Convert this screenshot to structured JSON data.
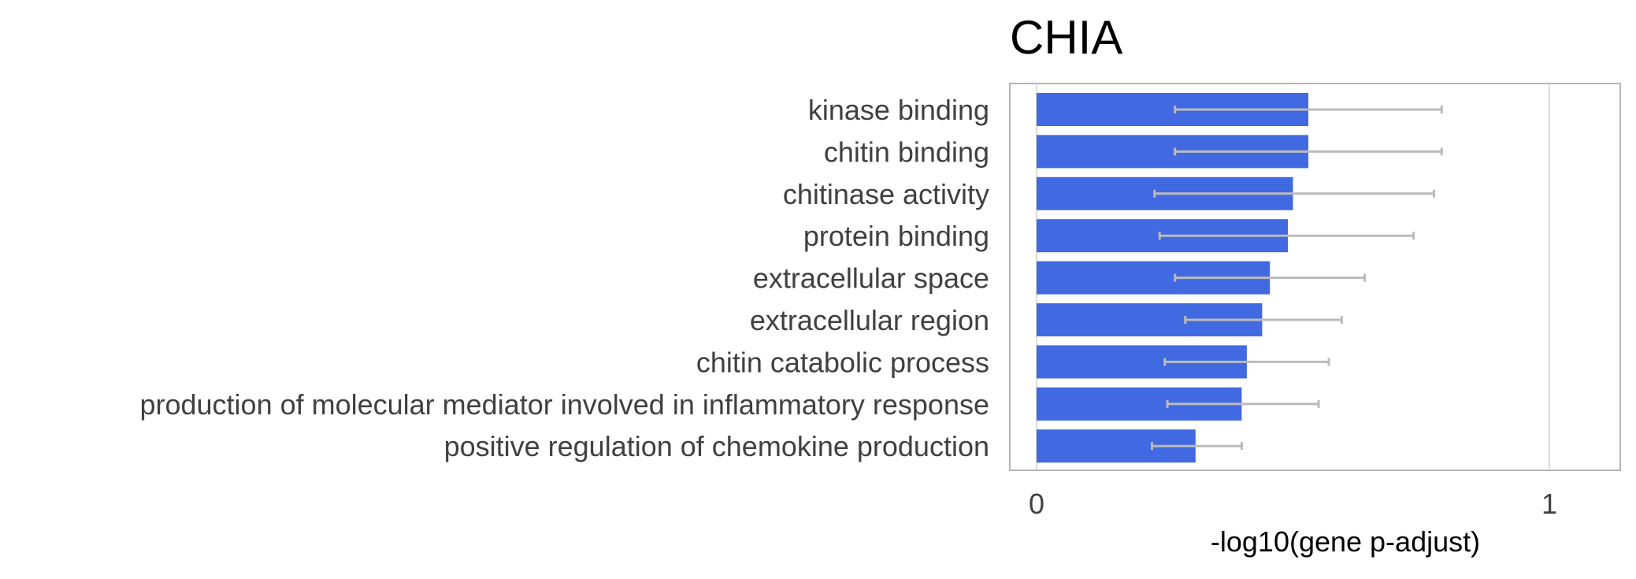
{
  "chart_data": {
    "type": "bar",
    "orientation": "horizontal",
    "title": "CHIA",
    "xlabel": "-log10(gene p-adjust)",
    "ylabel": "",
    "xlim": [
      0,
      1.14
    ],
    "xticks": [
      {
        "value": 0,
        "label": "0"
      },
      {
        "value": 1,
        "label": "1"
      }
    ],
    "grid": "vertical",
    "categories": [
      "kinase binding",
      "chitin binding",
      "chitinase activity",
      "protein binding",
      "extracellular space",
      "extracellular region",
      "chitin catabolic process",
      "production of molecular mediator involved in inflammatory response",
      "positive regulation of chemokine production"
    ],
    "values": [
      0.53,
      0.53,
      0.5,
      0.49,
      0.455,
      0.44,
      0.41,
      0.4,
      0.31
    ],
    "error_low": [
      0.27,
      0.27,
      0.23,
      0.24,
      0.27,
      0.29,
      0.25,
      0.255,
      0.225
    ],
    "error_high": [
      0.79,
      0.79,
      0.775,
      0.735,
      0.64,
      0.595,
      0.57,
      0.55,
      0.4
    ],
    "bar_color": "#4169e1",
    "error_color": "#bbbbbb"
  }
}
